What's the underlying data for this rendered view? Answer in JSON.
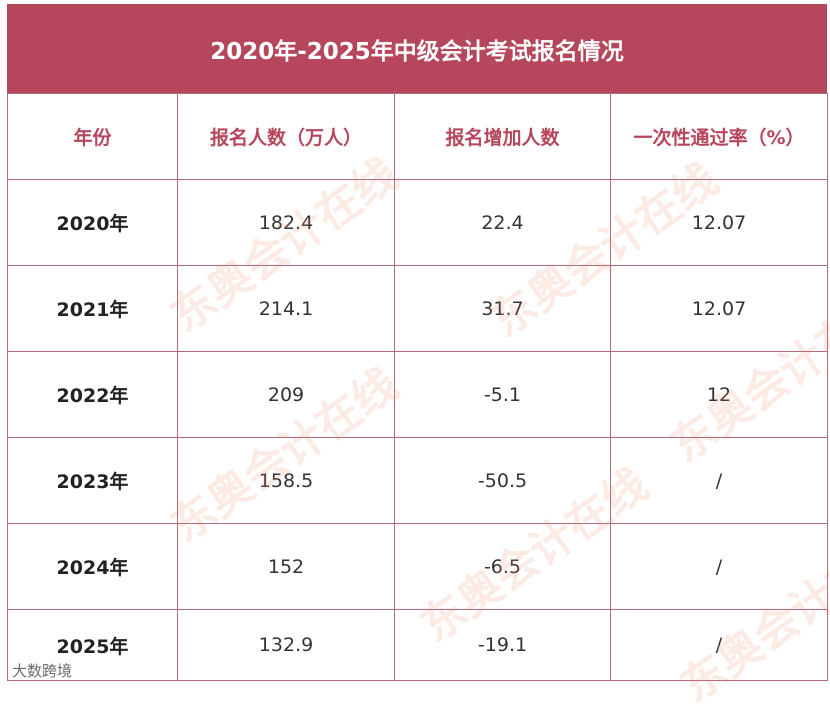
{
  "title": "2020年-2025年中级会计考试报名情况",
  "headers": [
    "年份",
    "报名人数（万人）",
    "报名增加人数",
    "一次性通过率（%）"
  ],
  "rows": [
    {
      "year": "2020年",
      "applicants": "182.4",
      "increase": "22.4",
      "pass_rate": "12.07"
    },
    {
      "year": "2021年",
      "applicants": "214.1",
      "increase": "31.7",
      "pass_rate": "12.07"
    },
    {
      "year": "2022年",
      "applicants": "209",
      "increase": "-5.1",
      "pass_rate": "12"
    },
    {
      "year": "2023年",
      "applicants": "158.5",
      "increase": "-50.5",
      "pass_rate": "/"
    },
    {
      "year": "2024年",
      "applicants": "152",
      "increase": "-6.5",
      "pass_rate": "/"
    },
    {
      "year": "2025年",
      "applicants": "132.9",
      "increase": "-19.1",
      "pass_rate": "/"
    }
  ],
  "watermark": "东奥会计在线",
  "footer_mark": "大数跨境",
  "colors": {
    "header_bg": "#b5465c",
    "header_text": "#b5465c",
    "border": "#b06a7a"
  }
}
